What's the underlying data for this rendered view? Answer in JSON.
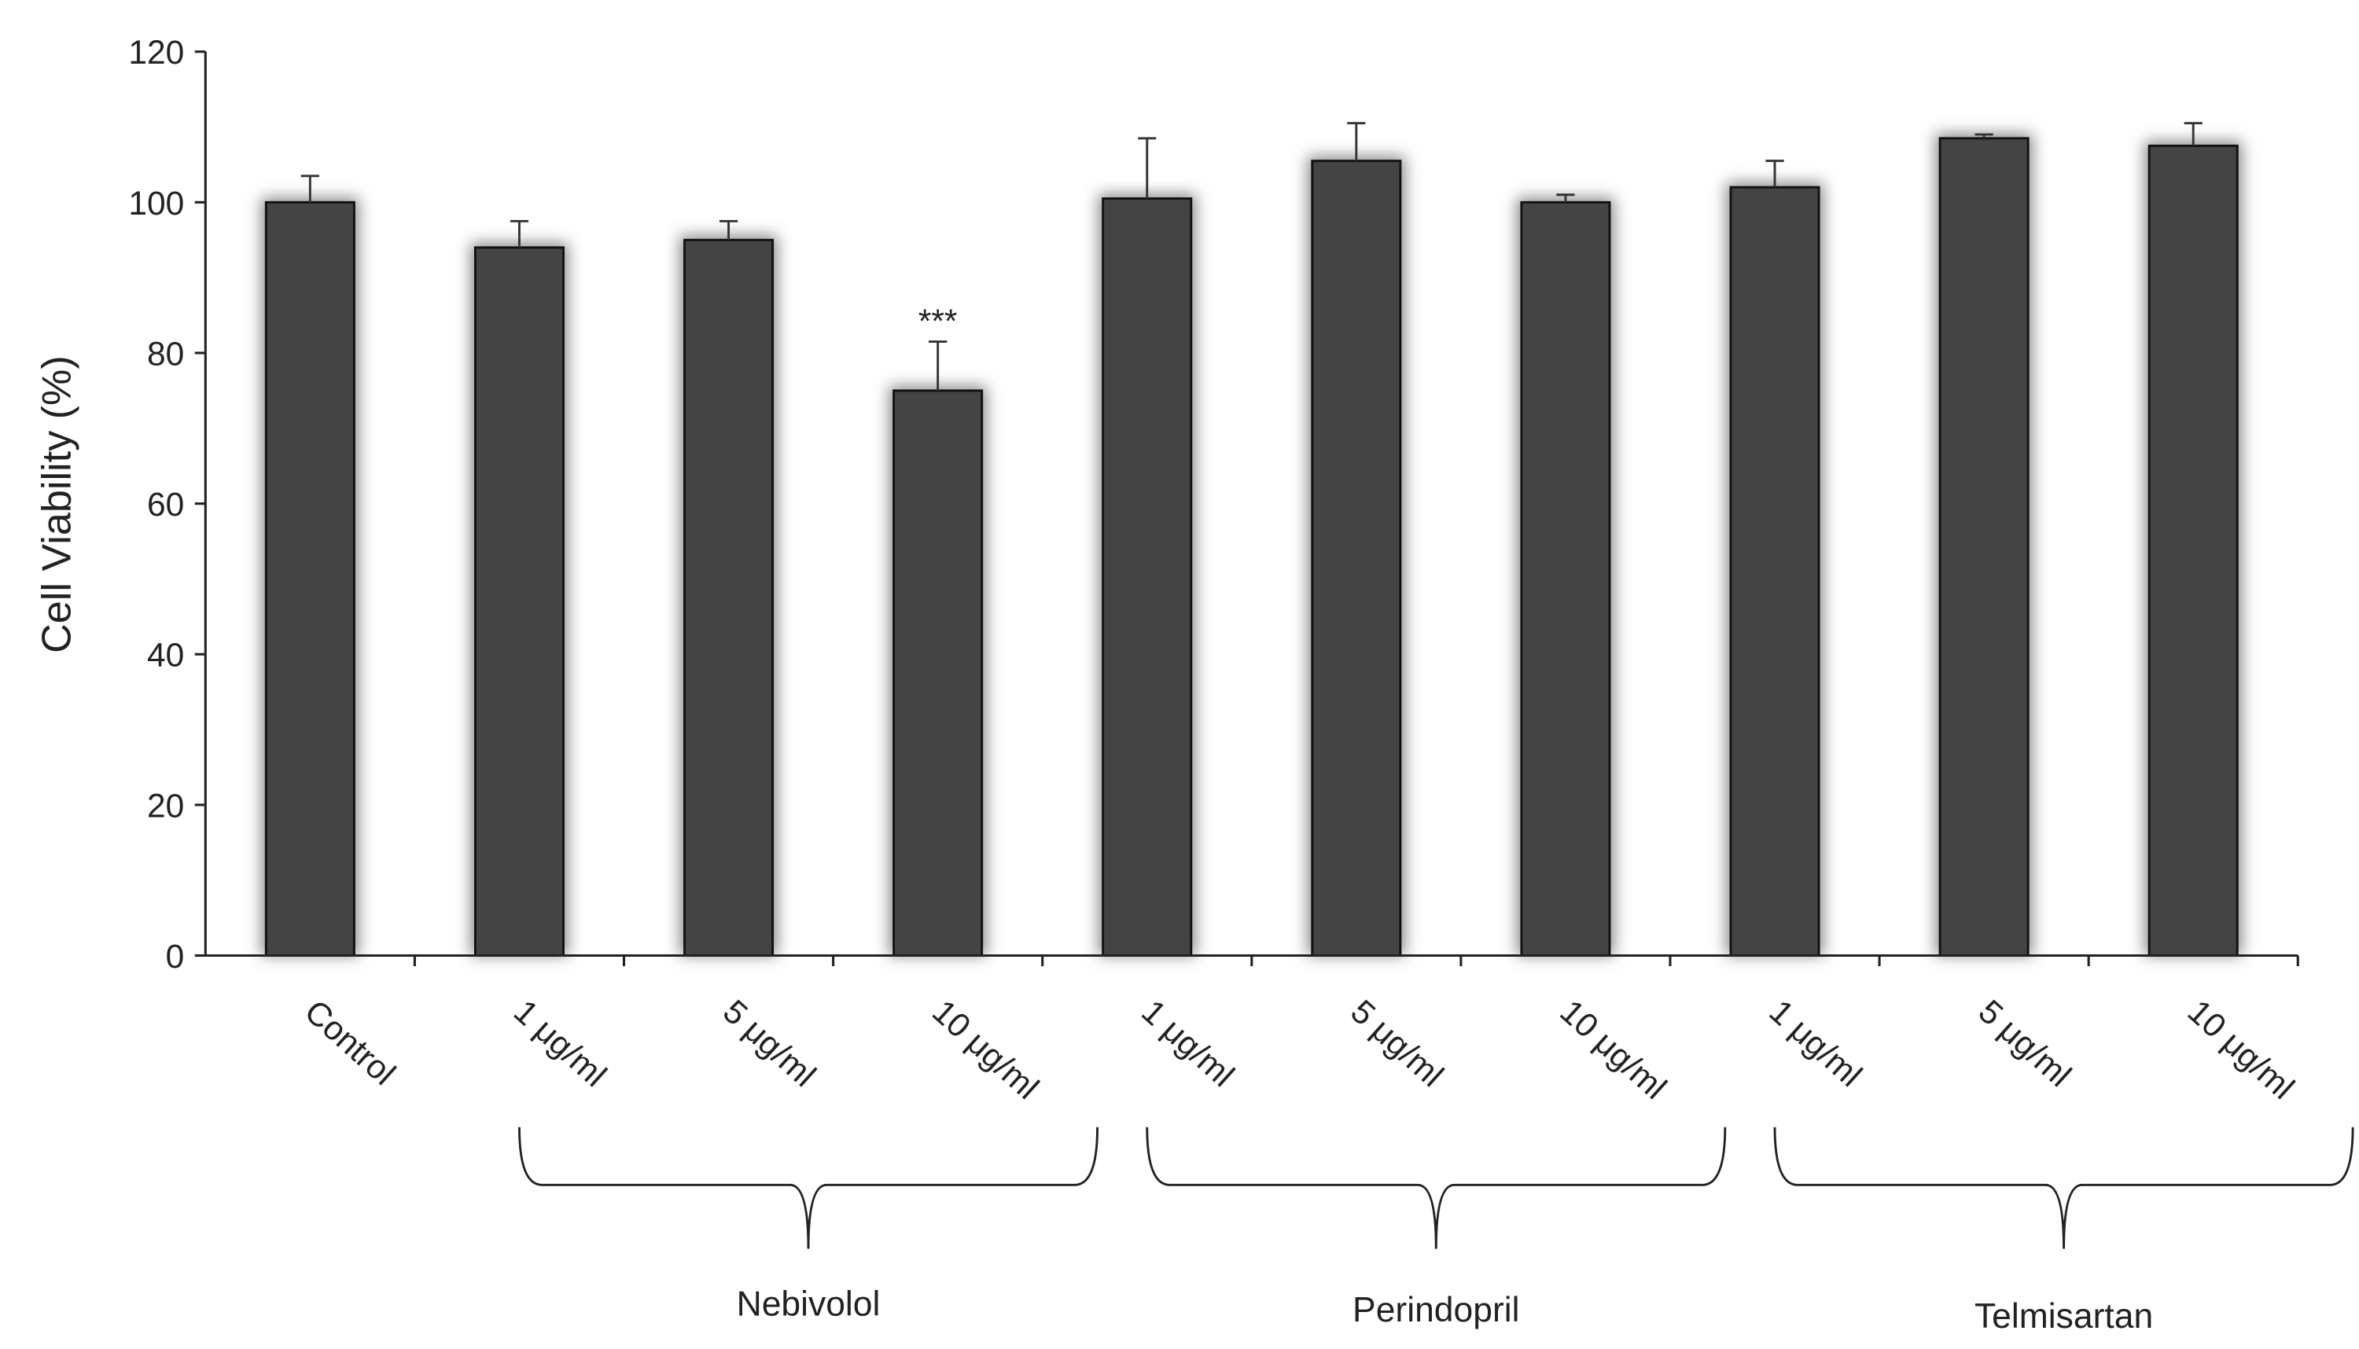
{
  "chart_data": {
    "type": "bar",
    "ylabel": "Cell Viability (%)",
    "categories": [
      "Control",
      "1 μg/ml",
      "5 μg/ml",
      "10 μg/ml",
      "1 μg/ml",
      "5 μg/ml",
      "10 μg/ml",
      "1 μg/ml",
      "5 μg/ml",
      "10 μg/ml"
    ],
    "values": [
      100,
      94,
      95,
      75,
      100.5,
      105.5,
      100,
      102,
      108.5,
      107.5
    ],
    "errors": [
      3.5,
      3.5,
      2.5,
      6.5,
      8,
      5,
      1,
      3.5,
      0.5,
      3
    ],
    "color": "#444444",
    "annotation": "***",
    "groups": [
      "Nebivolol",
      "Perindopril",
      "Telmisartan"
    ],
    "ylim": [
      0,
      120
    ],
    "yticks": [
      0,
      20,
      40,
      60,
      80,
      100,
      120
    ],
    "grid": false
  }
}
